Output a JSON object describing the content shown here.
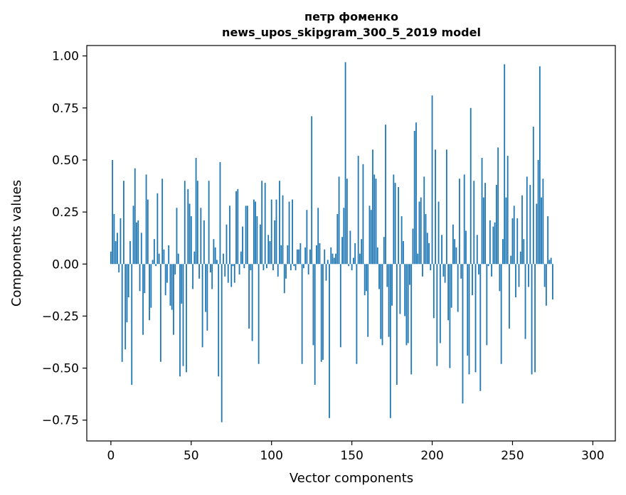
{
  "chart_data": {
    "type": "bar",
    "title_line1": "петр фоменко",
    "title_line2": "news_upos_skipgram_300_5_2019 model",
    "xlabel": "Vector components",
    "ylabel": "Components values",
    "xlim": [
      -15,
      314
    ],
    "ylim": [
      -0.85,
      1.05
    ],
    "x_ticks": [
      0,
      50,
      100,
      150,
      200,
      250,
      300
    ],
    "y_ticks": [
      -0.75,
      -0.5,
      -0.25,
      0.0,
      0.25,
      0.5,
      0.75,
      1.0
    ],
    "x_tick_labels": [
      "0",
      "50",
      "100",
      "150",
      "200",
      "250",
      "300"
    ],
    "y_tick_labels": [
      "−0.75",
      "−0.50",
      "−0.25",
      "0.00",
      "0.25",
      "0.50",
      "0.75",
      "1.00"
    ],
    "bar_color": "#1f77b4",
    "grid": false,
    "values": [
      0.06,
      0.5,
      0.24,
      0.11,
      0.15,
      -0.04,
      0.22,
      -0.47,
      0.4,
      -0.41,
      -0.28,
      -0.16,
      0.11,
      -0.58,
      0.28,
      0.46,
      0.2,
      0.21,
      -0.13,
      0.15,
      -0.34,
      -0.14,
      0.43,
      0.31,
      -0.27,
      -0.21,
      0.02,
      0.12,
      -0.01,
      0.34,
      0.05,
      -0.47,
      0.41,
      0.07,
      -0.15,
      -0.09,
      0.09,
      -0.2,
      -0.22,
      -0.34,
      -0.05,
      0.27,
      0.05,
      -0.54,
      -0.19,
      -0.49,
      0.4,
      -0.52,
      0.36,
      0.29,
      0.23,
      -0.12,
      0.06,
      0.51,
      0.4,
      -0.07,
      0.27,
      -0.4,
      0.21,
      -0.23,
      -0.32,
      0.4,
      -0.04,
      -0.12,
      0.12,
      0.08,
      0.02,
      -0.54,
      0.49,
      -0.76,
      0.05,
      -0.06,
      0.19,
      -0.09,
      0.28,
      -0.11,
      -0.01,
      -0.09,
      0.35,
      0.36,
      -0.05,
      0.06,
      0.18,
      -0.02,
      0.28,
      0.28,
      -0.31,
      -0.03,
      -0.37,
      0.31,
      0.3,
      0.23,
      -0.48,
      0.19,
      0.4,
      -0.03,
      0.39,
      -0.02,
      0.14,
      0.11,
      0.31,
      -0.03,
      0.21,
      0.31,
      -0.06,
      0.4,
      0.09,
      0.33,
      -0.14,
      -0.07,
      0.09,
      0.3,
      -0.03,
      0.31,
      -0.01,
      -0.03,
      0.07,
      0.07,
      0.1,
      -0.48,
      -0.02,
      0.08,
      0.26,
      -0.05,
      0.07,
      0.71,
      -0.39,
      -0.58,
      0.09,
      0.27,
      0.1,
      -0.47,
      -0.46,
      0.07,
      -0.08,
      0.02,
      -0.74,
      0.08,
      0.05,
      0.03,
      0.05,
      0.24,
      0.42,
      -0.4,
      0.13,
      0.27,
      0.97,
      0.41,
      -0.01,
      0.16,
      -0.03,
      0.03,
      0.1,
      -0.48,
      0.52,
      0.05,
      0.12,
      0.48,
      -0.15,
      -0.13,
      -0.35,
      0.28,
      0.26,
      0.55,
      0.43,
      0.41,
      0.08,
      -0.12,
      -0.36,
      -0.39,
      0.13,
      0.67,
      -0.11,
      -0.35,
      -0.74,
      -0.2,
      0.43,
      0.39,
      -0.58,
      0.37,
      -0.24,
      0.23,
      0.11,
      -0.25,
      -0.39,
      -0.38,
      -0.1,
      -0.53,
      0.17,
      0.64,
      0.68,
      0.05,
      0.3,
      0.32,
      -0.06,
      0.42,
      0.24,
      0.15,
      0.1,
      -0.03,
      0.81,
      -0.26,
      0.55,
      -0.49,
      0.3,
      -0.38,
      0.14,
      -0.06,
      -0.09,
      0.55,
      -0.27,
      -0.5,
      -0.21,
      0.19,
      0.12,
      0.08,
      -0.23,
      0.41,
      -0.07,
      -0.67,
      0.43,
      0.16,
      -0.44,
      -0.53,
      0.75,
      -0.15,
      0.4,
      -0.52,
      0.14,
      -0.05,
      -0.61,
      0.51,
      0.32,
      0.39,
      -0.39,
      -0.01,
      0.21,
      -0.06,
      0.18,
      0.2,
      0.38,
      0.56,
      -0.13,
      -0.48,
      0.12,
      0.96,
      0.32,
      0.52,
      -0.31,
      0.04,
      0.22,
      0.28,
      -0.16,
      0.22,
      -0.11,
      0.06,
      0.33,
      0.12,
      -0.36,
      0.42,
      -0.11,
      0.38,
      -0.53,
      0.66,
      -0.52,
      0.29,
      0.5,
      0.95,
      0.32,
      0.41,
      -0.11,
      -0.2,
      0.23,
      0.02,
      0.03,
      -0.17
    ]
  }
}
